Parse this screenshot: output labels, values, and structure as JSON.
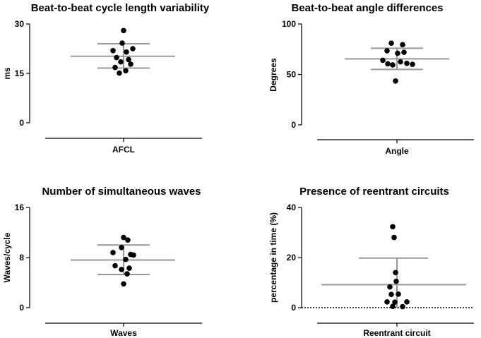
{
  "chart_data": [
    {
      "type": "scatter",
      "title": "Beat-to-beat cycle length variability",
      "ylabel": "ms",
      "category": "AFCL",
      "ylim": [
        0,
        30
      ],
      "yticks": [
        "0",
        "15",
        "30"
      ],
      "points": [
        28,
        24.2,
        22.5,
        21.9,
        21.5,
        19.8,
        19.2,
        18.5,
        17.8,
        16.8,
        15.8,
        15.1
      ],
      "mean": 20.2,
      "sd_upper": 24,
      "sd_lower": 16.6,
      "baseline_dotted": false
    },
    {
      "type": "scatter",
      "title": "Beat-to-beat angle differences",
      "ylabel": "Degrees",
      "category": "Angle",
      "ylim": [
        0,
        100
      ],
      "yticks": [
        "0",
        "50",
        "100"
      ],
      "points": [
        81,
        79.5,
        73.5,
        72,
        71,
        64,
        62.5,
        61,
        60.5,
        60,
        59.5,
        43.5
      ],
      "mean": 65.5,
      "sd_upper": 76,
      "sd_lower": 55,
      "baseline_dotted": false
    },
    {
      "type": "scatter",
      "title": "Number of simultaneous waves",
      "ylabel": "Waves/cycle",
      "category": "Waves",
      "ylim": [
        0,
        16
      ],
      "yticks": [
        "0",
        "8",
        "16"
      ],
      "points": [
        11.2,
        10.8,
        9.6,
        8.8,
        8.5,
        8.4,
        7.7,
        6.7,
        6.3,
        6.1,
        5.4,
        3.8
      ],
      "mean": 7.6,
      "sd_upper": 10,
      "sd_lower": 5.3,
      "baseline_dotted": false
    },
    {
      "type": "scatter",
      "title": "Presence of reentrant circuits",
      "ylabel": "percentage in time (%)",
      "category": "Reentrant circuit",
      "ylim": [
        0,
        40
      ],
      "yticks": [
        "0",
        "20",
        "40"
      ],
      "points": [
        32.3,
        28,
        14,
        10.5,
        8.3,
        5.4,
        5.3,
        2.3,
        2.3,
        2.2,
        0.5,
        0.4
      ],
      "mean": 9.2,
      "sd_upper": 19.8,
      "sd_lower": 0,
      "baseline_dotted": true
    }
  ]
}
